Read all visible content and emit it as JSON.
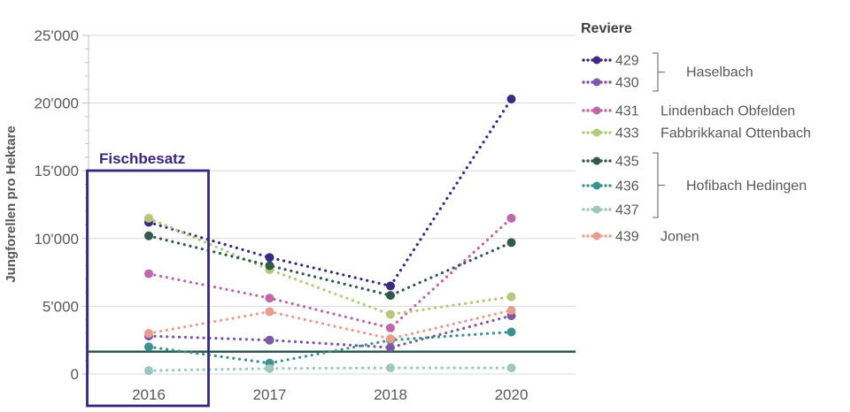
{
  "chart_data": {
    "type": "line",
    "style": "dotted-lines-with-markers",
    "ylabel": "Jungforellen pro Hektare",
    "x_categories": [
      "2016",
      "2017",
      "2018",
      "2020"
    ],
    "ylim": [
      0,
      25000
    ],
    "ytick_step": 5000,
    "ytick_labels": [
      "0",
      "5'000",
      "10'000",
      "15'000",
      "20'000",
      "25'000"
    ],
    "grid": "horizontal",
    "legend_title": "Reviere",
    "legend_position": "right",
    "reference_line": {
      "value": 1650,
      "color": "#2e594c"
    },
    "annotation": {
      "label": "Fischbesatz",
      "color": "#372582",
      "x_category": "2016"
    },
    "series": [
      {
        "id": "429",
        "group": "Haselbach",
        "color": "#3a2a86",
        "values": [
          11200,
          8600,
          6500,
          20300
        ]
      },
      {
        "id": "430",
        "group": "Haselbach",
        "color": "#7e58a5",
        "values": [
          2800,
          2500,
          1950,
          4300
        ]
      },
      {
        "id": "431",
        "group": "Lindenbach Obfelden",
        "color": "#c066a9",
        "values": [
          7400,
          5600,
          3400,
          11500
        ]
      },
      {
        "id": "433",
        "group": "Fabbrikkanal Ottenbach",
        "color": "#b2ca7a",
        "values": [
          11500,
          7700,
          4400,
          5700
        ]
      },
      {
        "id": "435",
        "group": "Hofibach Hedingen",
        "color": "#2f5a4c",
        "values": [
          10200,
          8000,
          5800,
          9700
        ]
      },
      {
        "id": "436",
        "group": "Hofibach Hedingen",
        "color": "#3b928e",
        "values": [
          2000,
          800,
          2500,
          3100
        ]
      },
      {
        "id": "437",
        "group": "Hofibach Hedingen",
        "color": "#9ec7bf",
        "values": [
          250,
          400,
          450,
          450
        ]
      },
      {
        "id": "439",
        "group": "Jonen",
        "color": "#eb9c8e",
        "values": [
          3000,
          4600,
          2600,
          4700
        ]
      }
    ],
    "legend_groups": [
      {
        "label": "Haselbach",
        "series": [
          "429",
          "430"
        ],
        "bracket": true
      },
      {
        "label": "Lindenbach Obfelden",
        "series": [
          "431"
        ],
        "bracket": false
      },
      {
        "label": "Fabbrikkanal Ottenbach",
        "series": [
          "433"
        ],
        "bracket": false
      },
      {
        "label": "Hofibach Hedingen",
        "series": [
          "435",
          "436",
          "437"
        ],
        "bracket": true
      },
      {
        "label": "Jonen",
        "series": [
          "439"
        ],
        "bracket": false
      }
    ],
    "colors": {
      "grid": "#d9d9d9",
      "axis": "#bfbfbf",
      "tick_label": "#595959",
      "axis_title": "#595959",
      "legend_title": "#404040",
      "legend_text": "#595959",
      "bracket": "#808080"
    }
  }
}
